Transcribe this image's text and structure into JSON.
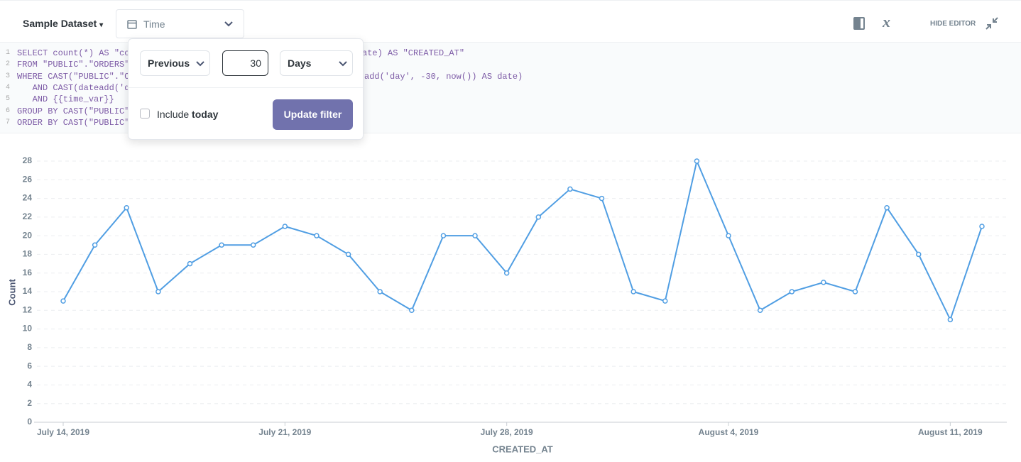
{
  "header": {
    "dataset": "Sample Dataset",
    "field": "Time",
    "hide_editor": "HIDE EDITOR"
  },
  "editor": {
    "line_numbers": [
      1,
      2,
      3,
      4,
      5,
      6,
      7
    ],
    "lines": [
      {
        "left": "SELECT count(*) AS \"co",
        "right": "ate) AS \"CREATED_AT\""
      },
      {
        "left": "FROM \"PUBLIC\".\"ORDERS\""
      },
      {
        "left": "WHERE CAST(\"PUBLIC\".\"O",
        "right": "add('day', -30, now()) AS date)"
      },
      {
        "left": "   AND CAST(dateadd('d"
      },
      {
        "left": "   AND {{time_var}}"
      },
      {
        "left": "GROUP BY CAST(\"PUBLIC\""
      },
      {
        "left": "ORDER BY CAST(\"PUBLIC\""
      }
    ]
  },
  "popover": {
    "direction": "Previous",
    "amount": "30",
    "unit": "Days",
    "include": "Include",
    "include_bold": "today",
    "button": "Update filter"
  },
  "chart_data": {
    "type": "line",
    "xlabel": "CREATED_AT",
    "ylabel": "Count",
    "color": "#509ee3",
    "grid": true,
    "x": [
      "2019-07-14",
      "2019-07-15",
      "2019-07-16",
      "2019-07-17",
      "2019-07-18",
      "2019-07-19",
      "2019-07-20",
      "2019-07-21",
      "2019-07-22",
      "2019-07-23",
      "2019-07-24",
      "2019-07-25",
      "2019-07-26",
      "2019-07-27",
      "2019-07-28",
      "2019-07-29",
      "2019-07-30",
      "2019-07-31",
      "2019-08-01",
      "2019-08-02",
      "2019-08-03",
      "2019-08-04",
      "2019-08-05",
      "2019-08-06",
      "2019-08-07",
      "2019-08-08",
      "2019-08-09",
      "2019-08-10",
      "2019-08-11",
      "2019-08-12"
    ],
    "values": [
      13,
      19,
      23,
      14,
      17,
      19,
      19,
      21,
      20,
      18,
      14,
      12,
      20,
      20,
      16,
      22,
      25,
      24,
      14,
      13,
      28,
      20,
      12,
      14,
      15,
      14,
      23,
      18,
      11,
      21
    ],
    "xticks": [
      {
        "value": "2019-07-14",
        "label": "July 14, 2019"
      },
      {
        "value": "2019-07-21",
        "label": "July 21, 2019"
      },
      {
        "value": "2019-07-28",
        "label": "July 28, 2019"
      },
      {
        "value": "2019-08-04",
        "label": "August 4, 2019"
      },
      {
        "value": "2019-08-11",
        "label": "August 11, 2019"
      }
    ],
    "ylim": [
      0,
      28
    ],
    "yticks": [
      0,
      2,
      4,
      6,
      8,
      10,
      12,
      14,
      16,
      18,
      20,
      22,
      24,
      26,
      28
    ]
  }
}
